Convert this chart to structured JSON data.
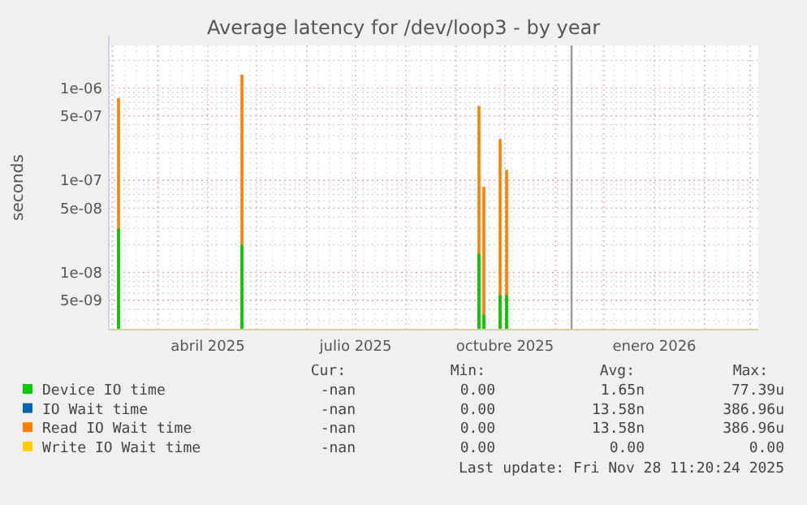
{
  "chart_data": {
    "type": "bar",
    "title": "Average latency for /dev/loop3 - by year",
    "ylabel": "seconds",
    "x": [
      "2025-02-05",
      "2025-04-22",
      "2025-09-15",
      "2025-09-18",
      "2025-09-28",
      "2025-10-02"
    ],
    "series": [
      {
        "name": "Device IO time",
        "color": "#00cc00",
        "values": [
          3e-08,
          2e-08,
          1.6e-08,
          3.5e-09,
          5.7e-09,
          5.7e-09
        ]
      },
      {
        "name": "IO Wait time",
        "color": "#0066b3",
        "values": [
          null,
          null,
          null,
          null,
          null,
          null
        ]
      },
      {
        "name": "Read IO Wait time",
        "color": "#ff8000",
        "values": [
          7.8e-07,
          1.4e-06,
          6.4e-07,
          8.5e-08,
          2.8e-07,
          1.3e-07
        ]
      },
      {
        "name": "Write IO Wait time",
        "color": "#ffcc00",
        "values": [
          null,
          null,
          null,
          null,
          null,
          null
        ]
      }
    ],
    "log": "y",
    "ylim": [
      2.4e-09,
      2.9e-06
    ],
    "yticks": [
      {
        "value": 5e-09,
        "label": "5e-09"
      },
      {
        "value": 1e-08,
        "label": "1e-08"
      },
      {
        "value": 5e-08,
        "label": "5e-08"
      },
      {
        "value": 1e-07,
        "label": "1e-07"
      },
      {
        "value": 5e-07,
        "label": "5e-07"
      },
      {
        "value": 1e-06,
        "label": "1e-06"
      }
    ],
    "xlim": [
      "2025-01-30",
      "2026-03-06"
    ],
    "xticks": [
      {
        "value": "2025-04-01",
        "label": "abril 2025"
      },
      {
        "value": "2025-07-01",
        "label": "julio 2025"
      },
      {
        "value": "2025-10-01",
        "label": "octubre 2025"
      },
      {
        "value": "2026-01-01",
        "label": "enero 2026"
      }
    ],
    "ref_lines": [
      {
        "axis": "x",
        "value": "2025-11-11",
        "color": "#999999"
      }
    ],
    "grid": true,
    "legend": "bottom",
    "annotations": [
      "Cur:",
      "Min:",
      "Avg:",
      "Max:",
      "-nan",
      "0.00",
      "1.65n",
      "77.39u",
      "-nan",
      "0.00",
      "13.58n",
      "386.96u",
      "-nan",
      "0.00",
      "13.58n",
      "386.96u",
      "-nan",
      "0.00",
      "0.00",
      "0.00",
      "Last update: Fri Nov 28 11:20:24 2025"
    ]
  }
}
